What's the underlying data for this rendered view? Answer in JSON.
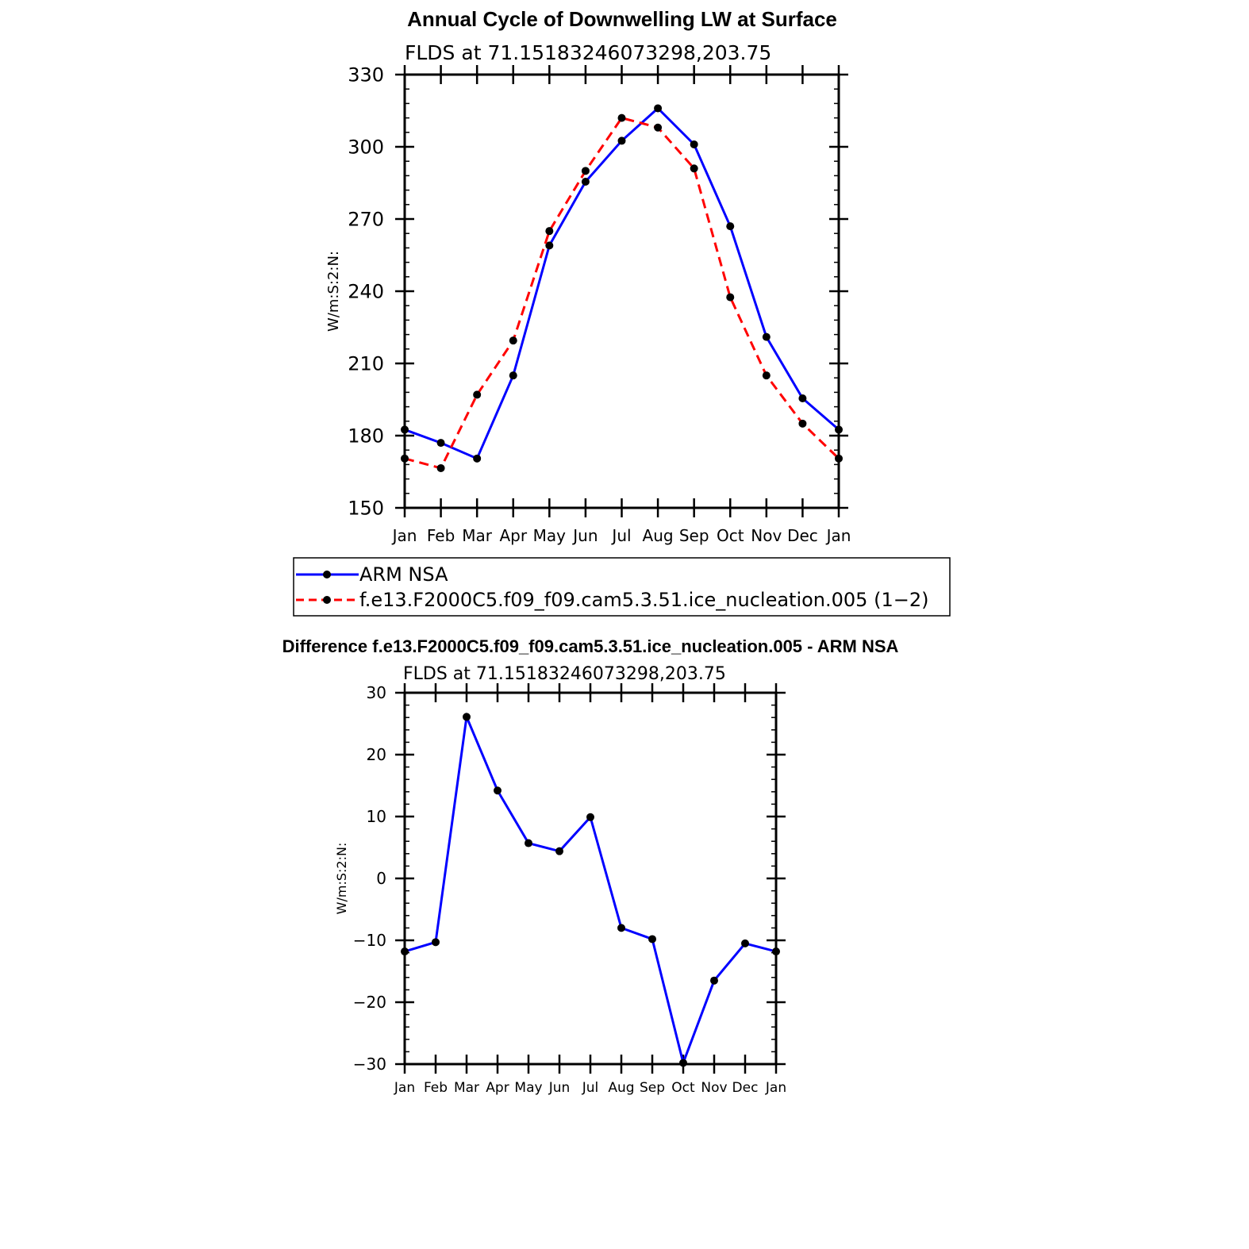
{
  "chart_data": [
    {
      "type": "line",
      "title": "Annual Cycle of Downwelling LW at Surface",
      "subtitle": "FLDS at 71.15183246073298,203.75",
      "ylabel": "W/m:S:2:N:",
      "xlabel": "",
      "categories": [
        "Jan",
        "Feb",
        "Mar",
        "Apr",
        "May",
        "Jun",
        "Jul",
        "Aug",
        "Sep",
        "Oct",
        "Nov",
        "Dec",
        "Jan"
      ],
      "ylim": [
        150,
        330
      ],
      "yticks": [
        "150",
        "180",
        "210",
        "240",
        "270",
        "300",
        "330"
      ],
      "series": [
        {
          "name": "ARM NSA",
          "color": "#0000ff",
          "dash": "solid",
          "values": [
            182.5,
            177,
            170.5,
            205,
            259,
            285.5,
            302.5,
            316,
            301,
            267,
            221,
            195.5,
            182.5
          ]
        },
        {
          "name": "f.e13.F2000C5.f09_f09.cam5.3.51.ice_nucleation.005 (1−2)",
          "color": "#ff0000",
          "dash": "dashed",
          "values": [
            170.5,
            166.5,
            197,
            219.5,
            265,
            290,
            312,
            308,
            291,
            237.5,
            205,
            185,
            170.5
          ]
        }
      ]
    },
    {
      "type": "line",
      "title": "Difference f.e13.F2000C5.f09_f09.cam5.3.51.ice_nucleation.005 - ARM NSA",
      "subtitle": "FLDS at 71.15183246073298,203.75",
      "ylabel": "W/m:S:2:N:",
      "xlabel": "",
      "categories": [
        "Jan",
        "Feb",
        "Mar",
        "Apr",
        "May",
        "Jun",
        "Jul",
        "Aug",
        "Sep",
        "Oct",
        "Nov",
        "Dec",
        "Jan"
      ],
      "ylim": [
        -30,
        30
      ],
      "yticks": [
        "−30",
        "−20",
        "−10",
        "0",
        "10",
        "20",
        "30"
      ],
      "series": [
        {
          "name": "Difference",
          "color": "#0000ff",
          "dash": "solid",
          "values": [
            -11.8,
            -10.3,
            26.1,
            14.2,
            5.7,
            4.4,
            9.9,
            -8,
            -9.8,
            -29.8,
            -16.5,
            -10.5,
            -11.8
          ]
        }
      ]
    }
  ]
}
